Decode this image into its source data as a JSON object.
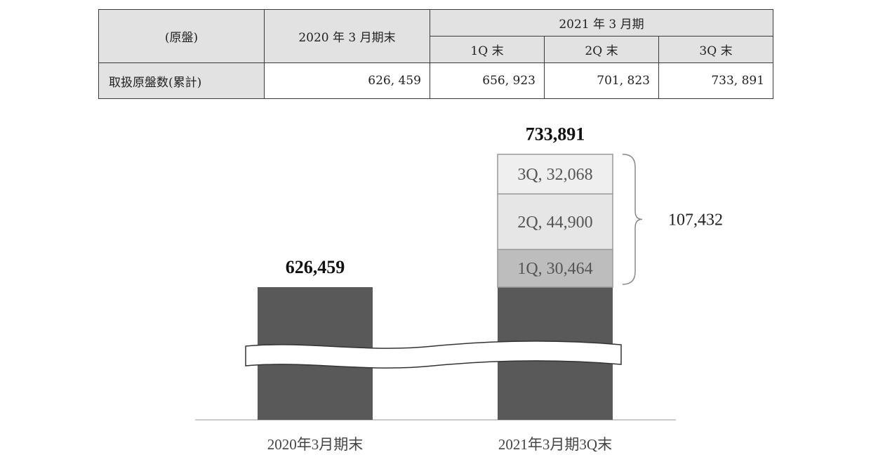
{
  "table": {
    "header_unit": "(原盤)",
    "header_prev": "2020 年 3 月期末",
    "header_period": "2021 年 3 月期",
    "header_q1": "1Q 末",
    "header_q2": "2Q 末",
    "header_q3": "3Q 末",
    "row_label": "取扱原盤数(累計)",
    "row_prev": "626, 459",
    "row_q1": "656, 923",
    "row_q2": "701, 823",
    "row_q3": "733, 891"
  },
  "chart_data": {
    "type": "bar",
    "categories": [
      "2020年3月期末",
      "2021年3月期3Q末"
    ],
    "totals": [
      626459,
      733891
    ],
    "total_labels": [
      "626,459",
      "733,891"
    ],
    "base": [
      626459,
      626459
    ],
    "increments": [
      {
        "name": "1Q",
        "value": 30464,
        "label": "1Q, 30,464",
        "color": "#bdbdbd"
      },
      {
        "name": "2Q",
        "value": 44900,
        "label": "2Q, 44,900",
        "color": "#e6e6e6"
      },
      {
        "name": "3Q",
        "value": 32068,
        "label": "3Q, 32,068",
        "color": "#efefef"
      }
    ],
    "increment_total": 107432,
    "increment_total_label": "107,432",
    "axis_break": true,
    "colors": {
      "base_bar": "#595959",
      "segment_border": "#999999",
      "brace": "#888888",
      "axis": "#cccccc"
    }
  }
}
